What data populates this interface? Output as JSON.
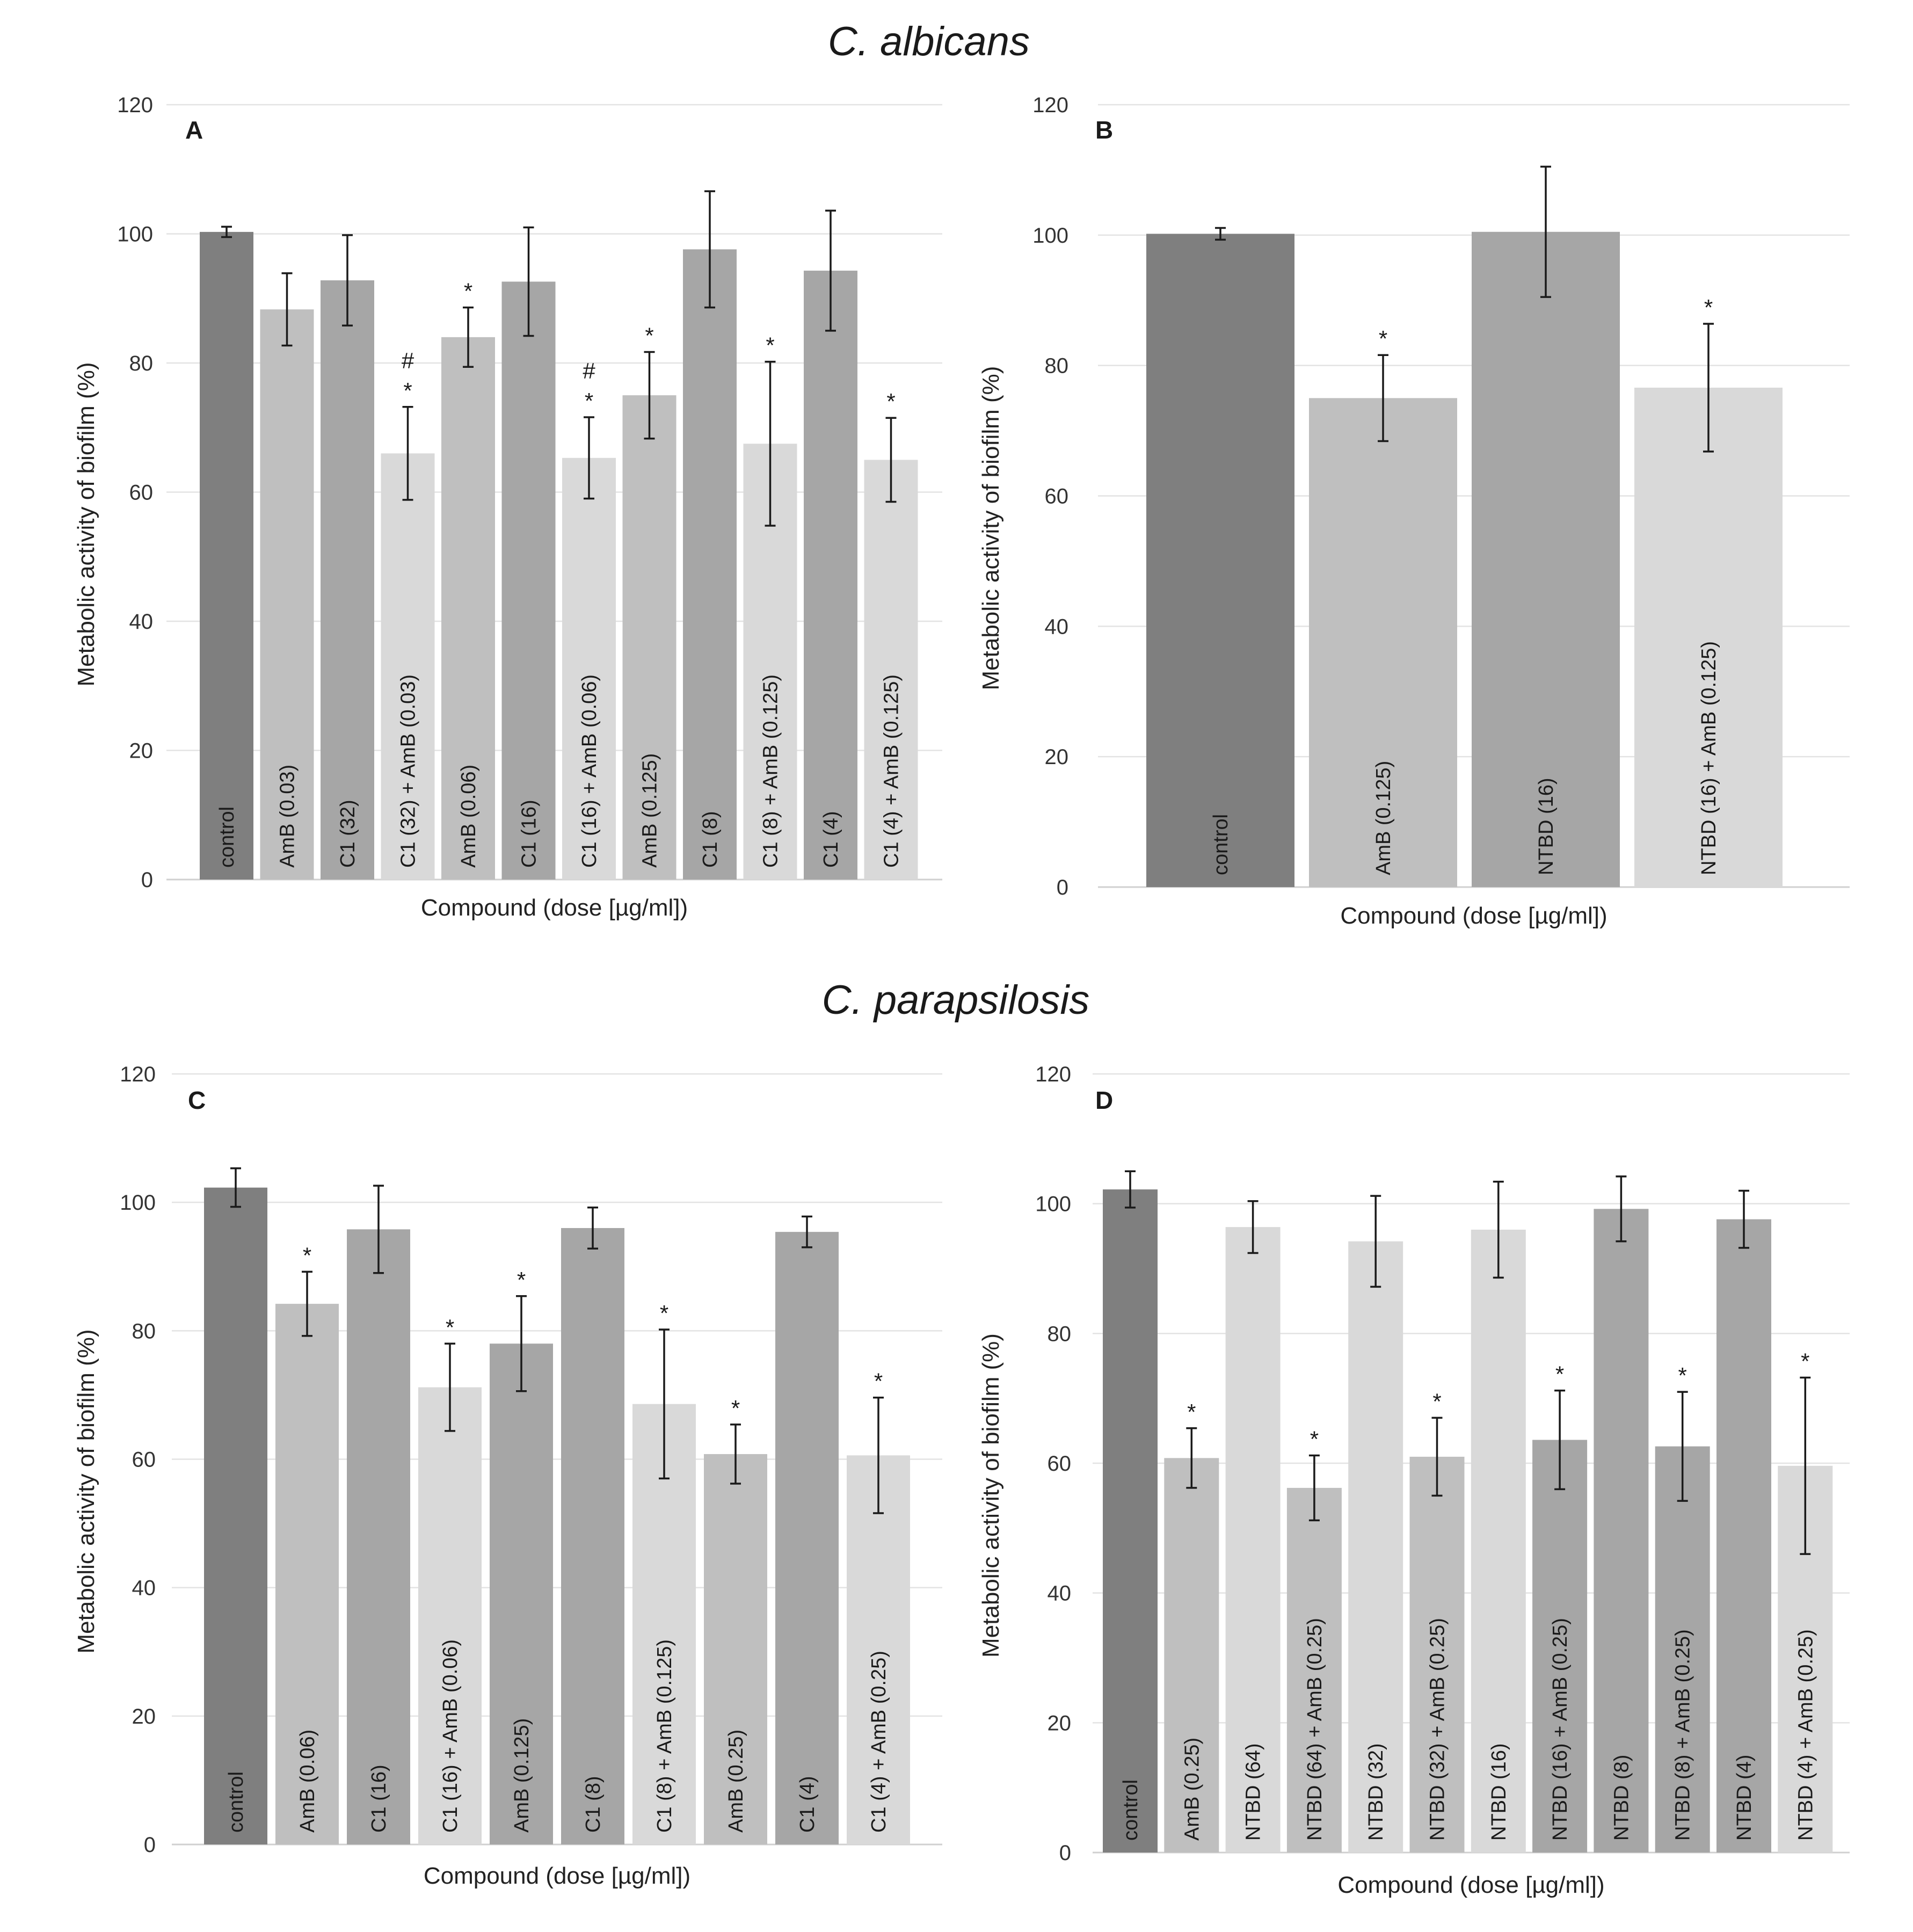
{
  "sections": {
    "top": "C. albicans",
    "bottom": "C. parapsilosis"
  },
  "colors": {
    "dark": "#7f7f7f",
    "mid": "#a6a6a6",
    "light": "#bfbfbf",
    "pale": "#d9d9d9"
  },
  "chart_data": [
    {
      "panel": "A",
      "type": "bar",
      "xlabel": "Compound (dose [µg/ml])",
      "ylabel": "Metabolic activity of biofilm (%)",
      "ylim": [
        0,
        120
      ],
      "yticks": [
        0,
        20,
        40,
        60,
        80,
        100,
        120
      ],
      "grid": true,
      "categories": [
        "control",
        "AmB (0.03)",
        "C1 (32)",
        "C1 (32) + AmB (0.03)",
        "AmB (0.06)",
        "C1 (16)",
        "C1 (16) + AmB (0.06)",
        "AmB (0.125)",
        "C1 (8)",
        "C1 (8) + AmB (0.125)",
        "C1 (4)",
        "C1 (4) + AmB (0.125)"
      ],
      "values": [
        100.3,
        88.3,
        92.8,
        66.0,
        84.0,
        92.6,
        65.3,
        75.0,
        97.6,
        67.5,
        94.3,
        65.0
      ],
      "errors": [
        0.8,
        5.6,
        7.0,
        7.2,
        4.6,
        8.4,
        6.3,
        6.7,
        9.0,
        12.7,
        9.3,
        6.5
      ],
      "colors": [
        "dark",
        "light",
        "mid",
        "pale",
        "light",
        "mid",
        "pale",
        "light",
        "mid",
        "pale",
        "mid",
        "pale"
      ],
      "annotations": [
        "",
        "",
        "",
        "* #",
        "*",
        "",
        "* #",
        "*",
        "",
        "*",
        "",
        "*"
      ]
    },
    {
      "panel": "B",
      "type": "bar",
      "xlabel": "Compound (dose [µg/ml])",
      "ylabel": "Metabolic activity of biofilm (%)",
      "ylim": [
        0,
        120
      ],
      "yticks": [
        0,
        20,
        40,
        60,
        80,
        100,
        120
      ],
      "grid": true,
      "categories": [
        "control",
        "AmB (0.125)",
        "NTBD (16)",
        "NTBD (16) + AmB (0.125)"
      ],
      "values": [
        100.2,
        75.0,
        100.5,
        76.6
      ],
      "errors": [
        0.9,
        6.6,
        10.0,
        9.8
      ],
      "colors": [
        "dark",
        "light",
        "mid",
        "pale"
      ],
      "annotations": [
        "",
        "*",
        "",
        "*"
      ]
    },
    {
      "panel": "C",
      "type": "bar",
      "xlabel": "Compound (dose [µg/ml])",
      "ylabel": "Metabolic activity of biofilm (%)",
      "ylim": [
        0,
        120
      ],
      "yticks": [
        0,
        20,
        40,
        60,
        80,
        100,
        120
      ],
      "grid": true,
      "categories": [
        "control",
        "AmB (0.06)",
        "C1 (16)",
        "C1 (16) + AmB (0.06)",
        "AmB (0.125)",
        "C1 (8)",
        "C1 (8) + AmB (0.125)",
        "AmB (0.25)",
        "C1 (4)",
        "C1 (4) + AmB (0.25)"
      ],
      "values": [
        102.3,
        84.2,
        95.8,
        71.2,
        78.0,
        96.0,
        68.6,
        60.8,
        95.4,
        60.6
      ],
      "errors": [
        3.0,
        5.0,
        6.8,
        6.8,
        7.4,
        3.2,
        11.6,
        4.6,
        2.4,
        9.0
      ],
      "colors": [
        "dark",
        "light",
        "mid",
        "pale",
        "mid",
        "mid",
        "pale",
        "light",
        "mid",
        "pale"
      ],
      "annotations": [
        "",
        "*",
        "",
        "*",
        "*",
        "",
        "*",
        "*",
        "",
        "*"
      ]
    },
    {
      "panel": "D",
      "type": "bar",
      "xlabel": "Compound (dose [µg/ml])",
      "ylabel": "Metabolic activity of biofilm (%)",
      "ylim": [
        0,
        120
      ],
      "yticks": [
        0,
        20,
        40,
        60,
        80,
        100,
        120
      ],
      "grid": true,
      "categories": [
        "control",
        "AmB (0.25)",
        "NTBD (64)",
        "NTBD (64) + AmB (0.25)",
        "NTBD (32)",
        "NTBD (32) + AmB (0.25)",
        "NTBD (16)",
        "NTBD (16) + AmB (0.25)",
        "NTBD (8)",
        "NTBD (8) + AmB (0.25)",
        "NTBD (4)",
        "NTBD (4) + AmB (0.25)"
      ],
      "values": [
        102.2,
        60.8,
        96.4,
        56.2,
        94.2,
        61.0,
        96.0,
        63.6,
        99.2,
        62.6,
        97.6,
        59.6
      ],
      "errors": [
        2.8,
        4.6,
        4.0,
        5.0,
        7.0,
        6.0,
        7.4,
        7.6,
        5.0,
        8.4,
        4.4,
        13.6
      ],
      "colors": [
        "dark",
        "light",
        "pale",
        "light",
        "pale",
        "light",
        "pale",
        "mid",
        "mid",
        "mid",
        "mid",
        "pale"
      ],
      "annotations": [
        "",
        "*",
        "",
        "*",
        "",
        "*",
        "",
        "*",
        "",
        "*",
        "",
        "*"
      ]
    }
  ]
}
